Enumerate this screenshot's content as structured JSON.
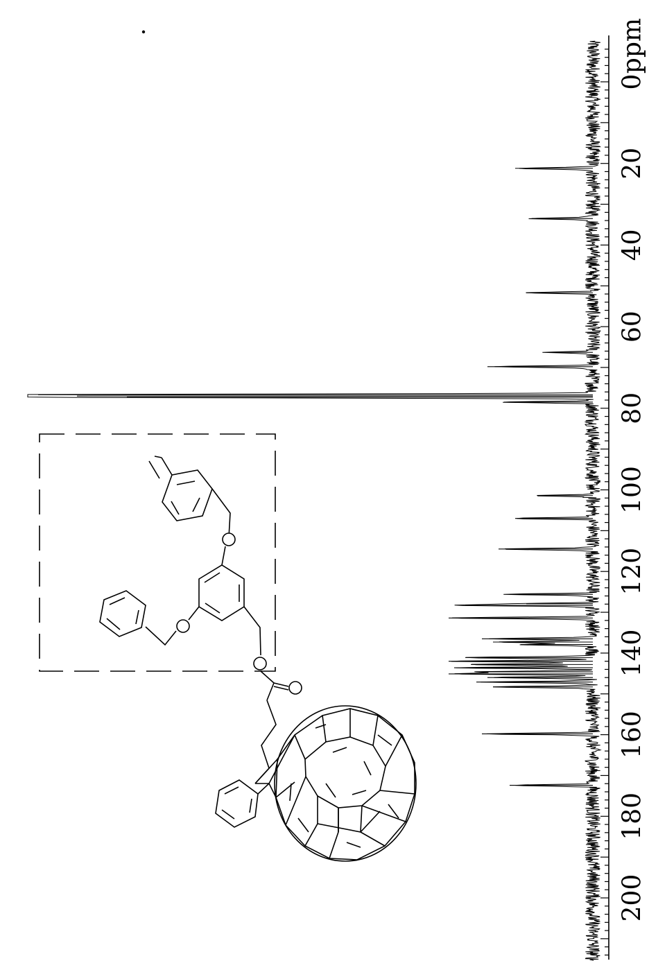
{
  "chart_data": {
    "type": "line",
    "title": "",
    "xlabel": "ppm",
    "ylabel": "",
    "x_axis_direction": "decreasing",
    "orientation": "rotated-90-clockwise",
    "xlim": [
      -10,
      220
    ],
    "xticks": [
      0,
      20,
      40,
      60,
      80,
      100,
      120,
      140,
      160,
      180,
      200
    ],
    "tick_labels": [
      "0",
      "20",
      "40",
      "60",
      "80",
      "100",
      "120",
      "140",
      "160",
      "180",
      "200"
    ],
    "grid": false,
    "series": [
      {
        "peaks": [
          {
            "x": 21.2,
            "y": 0.14
          },
          {
            "x": 33.5,
            "y": 0.11
          },
          {
            "x": 51.7,
            "y": 0.12
          },
          {
            "x": 66.3,
            "y": 0.08
          },
          {
            "x": 69.8,
            "y": 0.19
          },
          {
            "x": 76.7,
            "y": 1.0
          },
          {
            "x": 77.0,
            "y": 0.93
          },
          {
            "x": 77.3,
            "y": 0.84
          },
          {
            "x": 78.5,
            "y": 0.16
          },
          {
            "x": 101.4,
            "y": 0.1
          },
          {
            "x": 107.0,
            "y": 0.14
          },
          {
            "x": 114.5,
            "y": 0.17
          },
          {
            "x": 125.6,
            "y": 0.15
          },
          {
            "x": 127.9,
            "y": 0.12
          },
          {
            "x": 128.3,
            "y": 0.23
          },
          {
            "x": 131.4,
            "y": 0.26
          },
          {
            "x": 136.5,
            "y": 0.2
          },
          {
            "x": 137.3,
            "y": 0.18
          },
          {
            "x": 137.9,
            "y": 0.13
          },
          {
            "x": 141.1,
            "y": 0.23
          },
          {
            "x": 142.0,
            "y": 0.26
          },
          {
            "x": 142.8,
            "y": 0.22
          },
          {
            "x": 143.6,
            "y": 0.25
          },
          {
            "x": 144.6,
            "y": 0.21
          },
          {
            "x": 145.1,
            "y": 0.26
          },
          {
            "x": 146.0,
            "y": 0.19
          },
          {
            "x": 147.1,
            "y": 0.21
          },
          {
            "x": 148.3,
            "y": 0.18
          },
          {
            "x": 159.8,
            "y": 0.2
          },
          {
            "x": 172.4,
            "y": 0.15
          }
        ]
      }
    ]
  },
  "structure_labels": {
    "oxygen_ester_single": "O",
    "oxygen_carbonyl": "O",
    "oxygen_ether_left": "O",
    "oxygen_ether_right": "O"
  }
}
